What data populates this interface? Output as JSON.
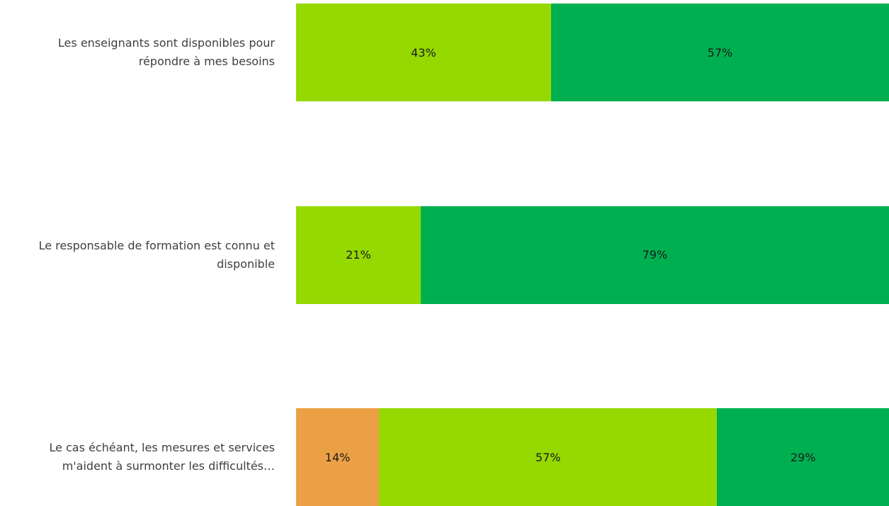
{
  "chart_data": {
    "type": "stacked-barh",
    "categories": [
      "Les enseignants sont disponibles pour répondre à mes besoins",
      "Le responsable de formation est connu et disponible",
      "Le cas échéant, les mesures et services m'aident à surmonter les difficultés…"
    ],
    "xlim": [
      0,
      100
    ],
    "series": [
      {
        "color": "#eca045",
        "values": [
          null,
          null,
          14
        ],
        "value_labels": [
          null,
          null,
          "14%"
        ]
      },
      {
        "color": "#95d900",
        "values": [
          43,
          21,
          57
        ],
        "value_labels": [
          "43%",
          "21%",
          "57%"
        ]
      },
      {
        "color": "#00b050",
        "values": [
          57,
          79,
          29
        ],
        "value_labels": [
          "57%",
          "79%",
          "29%"
        ]
      }
    ]
  }
}
